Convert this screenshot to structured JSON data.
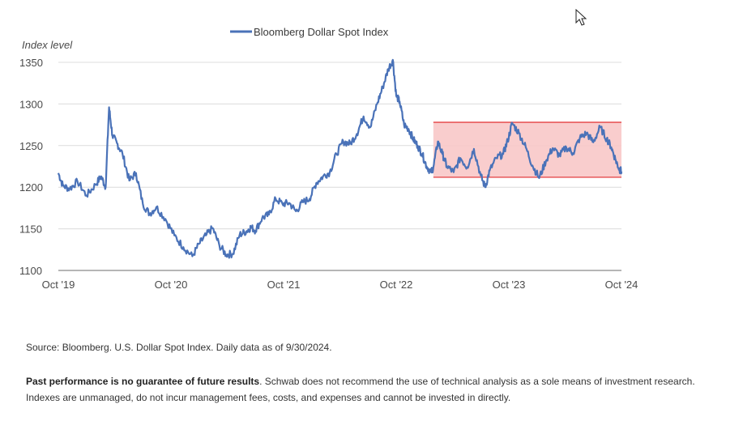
{
  "chart_data": {
    "type": "line",
    "title": "",
    "legend": "Bloomberg Dollar Spot Index",
    "ylabel": "Index level",
    "xlabel": "",
    "ylim": [
      1100,
      1350
    ],
    "yticks": [
      1100,
      1150,
      1200,
      1250,
      1300,
      1350
    ],
    "xticks": [
      {
        "label": "Oct '19",
        "t": 2019.75
      },
      {
        "label": "Oct '20",
        "t": 2020.75
      },
      {
        "label": "Oct '21",
        "t": 2021.75
      },
      {
        "label": "Oct '22",
        "t": 2022.75
      },
      {
        "label": "Oct '23",
        "t": 2023.75
      },
      {
        "label": "Oct '24",
        "t": 2024.75
      }
    ],
    "series_color": "#4a72b8",
    "range_band": {
      "t_start": 2023.08,
      "t_end": 2024.75,
      "low": 1212,
      "high": 1278,
      "fill": "#f8c8c8",
      "stroke": "#e8585a"
    },
    "series": [
      {
        "name": "Bloomberg Dollar Spot Index",
        "t": [
          2019.75,
          2019.79,
          2019.85,
          2019.92,
          2020.0,
          2020.08,
          2020.13,
          2020.17,
          2020.2,
          2020.23,
          2020.27,
          2020.32,
          2020.38,
          2020.44,
          2020.5,
          2020.56,
          2020.62,
          2020.7,
          2020.78,
          2020.86,
          2020.94,
          2021.0,
          2021.06,
          2021.12,
          2021.18,
          2021.24,
          2021.3,
          2021.36,
          2021.42,
          2021.46,
          2021.5,
          2021.56,
          2021.62,
          2021.68,
          2021.74,
          2021.8,
          2021.86,
          2021.92,
          2021.98,
          2022.04,
          2022.1,
          2022.16,
          2022.22,
          2022.28,
          2022.34,
          2022.4,
          2022.46,
          2022.52,
          2022.58,
          2022.63,
          2022.68,
          2022.72,
          2022.75,
          2022.78,
          2022.82,
          2022.86,
          2022.9,
          2022.94,
          2022.98,
          2023.02,
          2023.06,
          2023.08,
          2023.12,
          2023.16,
          2023.2,
          2023.26,
          2023.32,
          2023.38,
          2023.44,
          2023.5,
          2023.54,
          2023.58,
          2023.64,
          2023.7,
          2023.74,
          2023.78,
          2023.84,
          2023.9,
          2023.96,
          2024.02,
          2024.08,
          2024.14,
          2024.2,
          2024.26,
          2024.32,
          2024.38,
          2024.44,
          2024.5,
          2024.56,
          2024.62,
          2024.66,
          2024.7,
          2024.73,
          2024.75
        ],
        "values": [
          1217,
          1202,
          1198,
          1207,
          1190,
          1203,
          1213,
          1200,
          1296,
          1262,
          1253,
          1240,
          1208,
          1217,
          1180,
          1168,
          1176,
          1162,
          1142,
          1128,
          1117,
          1132,
          1142,
          1151,
          1130,
          1119,
          1120,
          1143,
          1147,
          1152,
          1148,
          1163,
          1167,
          1186,
          1180,
          1181,
          1171,
          1182,
          1186,
          1205,
          1213,
          1218,
          1240,
          1255,
          1252,
          1264,
          1285,
          1272,
          1300,
          1320,
          1342,
          1353,
          1310,
          1303,
          1275,
          1270,
          1258,
          1250,
          1240,
          1225,
          1218,
          1224,
          1255,
          1240,
          1225,
          1218,
          1235,
          1224,
          1246,
          1214,
          1200,
          1220,
          1235,
          1240,
          1256,
          1277,
          1265,
          1248,
          1226,
          1211,
          1232,
          1247,
          1238,
          1248,
          1241,
          1259,
          1265,
          1254,
          1272,
          1258,
          1248,
          1232,
          1222,
          1219
        ]
      }
    ]
  },
  "source_text": "Source: Bloomberg. U.S. Dollar Spot Index. Daily data as of 9/30/2024.",
  "disclaimer_bold": "Past performance is no guarantee of future results",
  "disclaimer_rest": ". Schwab does not recommend the use of technical analysis as a sole means of investment research. Indexes are unmanaged, do not incur management fees, costs, and expenses and cannot be invested in directly."
}
